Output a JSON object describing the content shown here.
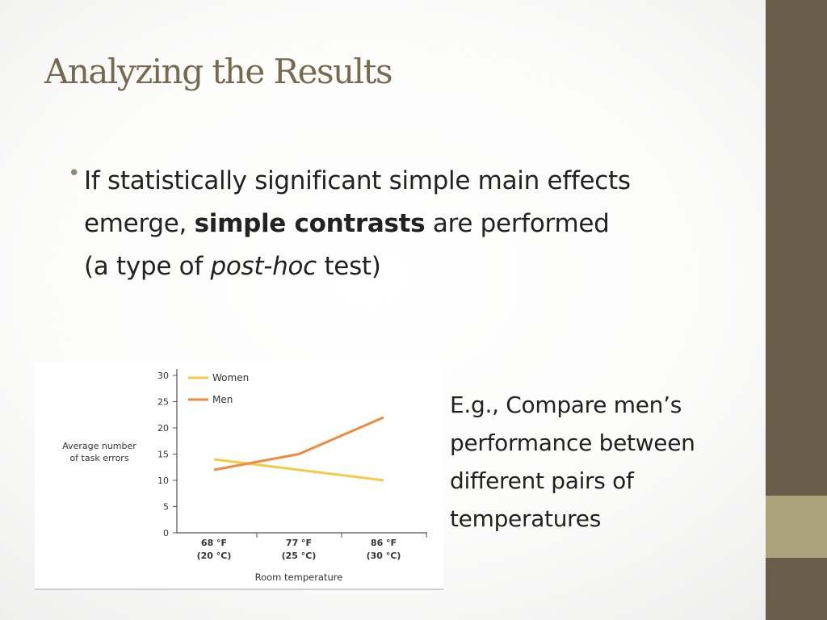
{
  "slide": {
    "title": "Analyzing the Results",
    "bullet": {
      "text_a": "If statistically significant simple main effects emerge, ",
      "bold": "simple contrasts",
      "text_b": " are performed (a type of ",
      "italic": "post-hoc",
      "text_c": " test)"
    },
    "example": "E.g., Compare men’s performance between different pairs of temperatures",
    "colors": {
      "title": "#756a4f",
      "sidebar": "#675f4a",
      "sidebar_accent": "#a9a47c"
    }
  },
  "chart_data": {
    "type": "line",
    "title": "",
    "ylabel_lines": [
      "Average number",
      "of task errors"
    ],
    "xlabel": "Room temperature",
    "categories": [
      [
        "68 °F",
        "(20 °C)"
      ],
      [
        "77 °F",
        "(25 °C)"
      ],
      [
        "86 °F",
        "(30 °C)"
      ]
    ],
    "yticks": [
      0,
      5,
      10,
      15,
      20,
      25,
      30
    ],
    "ylim": [
      0,
      30
    ],
    "series": [
      {
        "name": "Women",
        "color": "#f7c948",
        "values": [
          14,
          12,
          10
        ]
      },
      {
        "name": "Men",
        "color": "#f08a3e",
        "values": [
          12,
          15,
          22
        ]
      }
    ],
    "legend_position": "top-left",
    "grid": false
  }
}
